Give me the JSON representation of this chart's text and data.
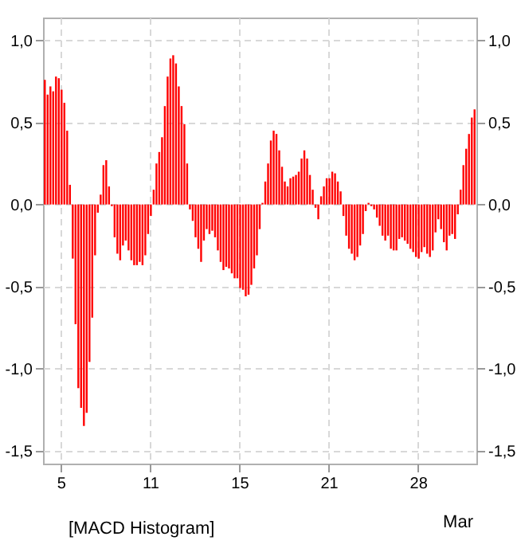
{
  "chart_data": {
    "type": "bar",
    "categories": [
      null,
      null,
      null,
      null,
      null,
      null,
      "5",
      null,
      null,
      null,
      null,
      null,
      null,
      null,
      null,
      null,
      null,
      null,
      null,
      null,
      null,
      null,
      null,
      null,
      null,
      null,
      null,
      null,
      null,
      null,
      null,
      null,
      null,
      null,
      null,
      null,
      null,
      null,
      "11",
      null,
      null,
      null,
      null,
      null,
      null,
      null,
      null,
      null,
      null,
      null,
      null,
      null,
      null,
      null,
      null,
      null,
      null,
      null,
      null,
      null,
      null,
      null,
      null,
      null,
      null,
      null,
      null,
      null,
      null,
      null,
      "15",
      null,
      null,
      null,
      null,
      null,
      null,
      null,
      null,
      null,
      null,
      null,
      null,
      null,
      null,
      null,
      null,
      null,
      null,
      null,
      null,
      null,
      null,
      null,
      null,
      null,
      null,
      null,
      null,
      null,
      null,
      null,
      "21",
      null,
      null,
      null,
      null,
      null,
      null,
      null,
      null,
      null,
      null,
      null,
      null,
      null,
      null,
      null,
      null,
      null,
      null,
      null,
      null,
      null,
      null,
      null,
      null,
      null,
      null,
      null,
      null,
      null,
      null,
      null,
      "28",
      null,
      null,
      null,
      null,
      null,
      null,
      null,
      null,
      null,
      null,
      null,
      null,
      null,
      null,
      null,
      null,
      null,
      null,
      null,
      null
    ],
    "series": [
      {
        "name": "[MACD Histogram]",
        "color": "#ff0000",
        "values": [
          0.76,
          0.67,
          0.72,
          0.69,
          0.78,
          0.77,
          0.7,
          0.62,
          0.45,
          0.12,
          -0.33,
          -0.73,
          -1.12,
          -1.24,
          -1.35,
          -1.27,
          -0.96,
          -0.69,
          -0.31,
          -0.05,
          0.06,
          0.24,
          0.27,
          0.11,
          -0.01,
          -0.2,
          -0.3,
          -0.34,
          -0.25,
          -0.22,
          -0.28,
          -0.34,
          -0.37,
          -0.37,
          -0.35,
          -0.37,
          -0.31,
          -0.18,
          -0.07,
          0.09,
          0.25,
          0.32,
          0.41,
          0.6,
          0.78,
          0.89,
          0.91,
          0.86,
          0.72,
          0.6,
          0.49,
          0.25,
          -0.03,
          -0.1,
          -0.2,
          -0.27,
          -0.35,
          -0.22,
          -0.15,
          -0.18,
          -0.16,
          -0.2,
          -0.28,
          -0.35,
          -0.4,
          -0.38,
          -0.39,
          -0.42,
          -0.45,
          -0.45,
          -0.51,
          -0.52,
          -0.56,
          -0.55,
          -0.49,
          -0.39,
          -0.31,
          -0.15,
          0.01,
          0.14,
          0.25,
          0.39,
          0.45,
          0.43,
          0.33,
          0.23,
          0.14,
          0.11,
          0.16,
          0.17,
          0.18,
          0.2,
          0.28,
          0.33,
          0.28,
          0.18,
          0.09,
          -0.02,
          -0.09,
          0.05,
          0.11,
          0.16,
          0.16,
          0.2,
          0.19,
          0.14,
          0.08,
          -0.07,
          -0.19,
          -0.27,
          -0.3,
          -0.34,
          -0.32,
          -0.25,
          -0.18,
          -0.04,
          0.01,
          -0.01,
          -0.03,
          -0.08,
          -0.13,
          -0.19,
          -0.22,
          -0.19,
          -0.27,
          -0.28,
          -0.28,
          -0.21,
          -0.2,
          -0.22,
          -0.24,
          -0.27,
          -0.29,
          -0.32,
          -0.33,
          -0.29,
          -0.26,
          -0.3,
          -0.32,
          -0.28,
          -0.17,
          -0.09,
          -0.15,
          -0.23,
          -0.28,
          -0.19,
          -0.18,
          -0.21,
          -0.06,
          0.09,
          0.24,
          0.34,
          0.43,
          0.53,
          0.58
        ]
      }
    ],
    "ylim": [
      -1.58,
      1.14
    ],
    "yticks": [
      {
        "value": -1.5,
        "label": "-1,5"
      },
      {
        "value": -1,
        "label": "-1,0"
      },
      {
        "value": -0.5,
        "label": "-0,5"
      },
      {
        "value": 0,
        "label": "0,0"
      },
      {
        "value": 0.5,
        "label": "0,5"
      },
      {
        "value": 1,
        "label": "1,0"
      }
    ],
    "y2lim": [
      -1.58,
      1.14
    ],
    "y2ticks": [
      {
        "value": -1.5,
        "label": "-1,5"
      },
      {
        "value": -1,
        "label": "-1,0"
      },
      {
        "value": -0.5,
        "label": "-0,5"
      },
      {
        "value": 0,
        "label": "0,0"
      },
      {
        "value": 0.5,
        "label": "0,5"
      },
      {
        "value": 1,
        "label": "1,0"
      }
    ],
    "annotations": [
      "Mar"
    ],
    "grid": true,
    "legend": "bottom"
  }
}
